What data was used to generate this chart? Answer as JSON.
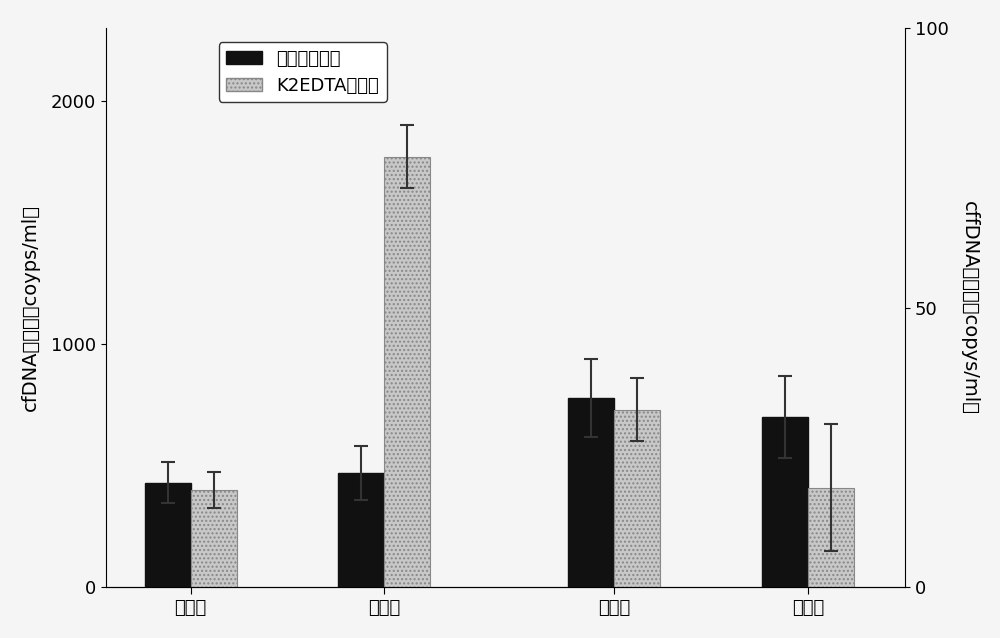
{
  "groups": [
    "对照组",
    "实验组",
    "对照组",
    "实验组"
  ],
  "black_values": [
    430,
    470,
    780,
    700
  ],
  "gray_values": [
    400,
    1770,
    730,
    410
  ],
  "black_errors": [
    85,
    110,
    160,
    170
  ],
  "gray_errors": [
    75,
    130,
    130,
    260
  ],
  "left_ylabel": "cfDNA拷贝数（coyps/ml）",
  "right_ylabel": "cffDNA拷贝数（copys/ml）",
  "left_ylim": [
    0,
    2300
  ],
  "right_ylim": [
    0,
    100
  ],
  "left_yticks": [
    0,
    1000,
    2000
  ],
  "right_yticks": [
    0,
    50,
    100
  ],
  "legend_black": "本发明采血管",
  "legend_gray": "K2EDTA抗凝管",
  "black_color": "#111111",
  "gray_color": "#c8c8c8",
  "bar_width": 0.38,
  "group_centers": [
    1.1,
    2.7,
    4.6,
    6.2
  ],
  "xlim": [
    0.4,
    7.0
  ],
  "background_color": "#f5f5f5",
  "font_size": 14,
  "tick_font_size": 13,
  "legend_font_size": 13
}
